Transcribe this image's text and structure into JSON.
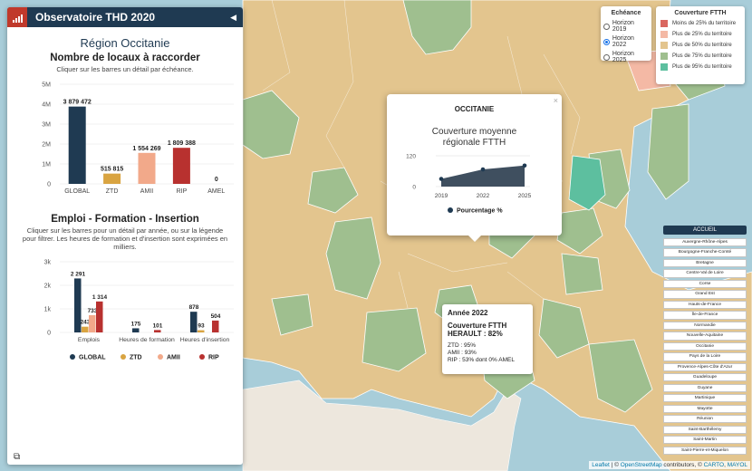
{
  "panel": {
    "title": "Observatoire THD 2020",
    "region_title": "Région Occitanie",
    "chart1_title": "Nombre de locaux à raccorder",
    "chart1_hint": "Cliquer sur les barres un détail par échéance.",
    "chart2_title": "Emploi - Formation - Insertion",
    "chart2_hint": "Cliquer sur les barres pour un détail par année, ou sur la légende pour filtrer. Les heures de formation et d'insertion sont exprimées en milliers."
  },
  "chart_data": [
    {
      "type": "bar",
      "categories": [
        "GLOBAL",
        "ZTD",
        "AMII",
        "RIP",
        "AMEL"
      ],
      "values": [
        3879472,
        515815,
        1554269,
        1809388,
        0
      ],
      "value_labels": [
        "3 879 472",
        "515 815",
        "1 554 269",
        "1 809 388",
        "0"
      ],
      "colors": [
        "#1f3a52",
        "#d9a441",
        "#f2a98a",
        "#b8312f",
        "#888888"
      ],
      "ylim": [
        0,
        5000000
      ],
      "yticks": [
        0,
        1000000,
        2000000,
        3000000,
        4000000,
        5000000
      ],
      "ytick_labels": [
        "0",
        "1M",
        "2M",
        "3M",
        "4M",
        "5M"
      ]
    },
    {
      "type": "bar",
      "categories": [
        "Emplois",
        "Heures de formation",
        "Heures d'insertion"
      ],
      "series": [
        {
          "name": "GLOBAL",
          "color": "#1f3a52",
          "values": [
            2291,
            175,
            878
          ]
        },
        {
          "name": "ZTD",
          "color": "#d9a441",
          "values": [
            243,
            0,
            93
          ]
        },
        {
          "name": "AMII",
          "color": "#f2a98a",
          "values": [
            733,
            0,
            0
          ]
        },
        {
          "name": "RIP",
          "color": "#b8312f",
          "values": [
            1314,
            101,
            504
          ]
        }
      ],
      "ylim": [
        0,
        3000
      ],
      "yticks": [
        0,
        1000,
        2000,
        3000
      ],
      "ytick_labels": [
        "0",
        "1k",
        "2k",
        "3k"
      ]
    },
    {
      "type": "area",
      "x": [
        2019,
        2022,
        2025
      ],
      "series": [
        {
          "name": "Pourcentage %",
          "color": "#3f4f5f",
          "values": [
            30,
            67,
            82
          ]
        }
      ],
      "ylim": [
        0,
        120
      ],
      "yticks": [
        0,
        120
      ]
    }
  ],
  "popup": {
    "region": "OCCITANIE",
    "chart_title_line1": "Couverture moyenne",
    "chart_title_line2": "régionale FTTH",
    "close": "×"
  },
  "horizon": {
    "title": "Echéance",
    "options": [
      {
        "label": "Horizon 2019",
        "selected": false
      },
      {
        "label": "Horizon 2022",
        "selected": true
      },
      {
        "label": "Horizon 2025",
        "selected": false
      }
    ]
  },
  "ftth_legend": {
    "title": "Couverture FTTH",
    "items": [
      {
        "label": "Moins de 25% du territoire",
        "color": "#d9665f"
      },
      {
        "label": "Plus de 25% du territoire",
        "color": "#f4b9a5"
      },
      {
        "label": "Plus de 50% du territoire",
        "color": "#e3c58e"
      },
      {
        "label": "Plus de 75% du territoire",
        "color": "#9fbf8f"
      },
      {
        "label": "Plus de 95% du territoire",
        "color": "#5dbf9f"
      }
    ]
  },
  "tooltip": {
    "year": "Année 2022",
    "line1": "Couverture FTTH",
    "line2": "HERAULT : 82%",
    "ztd": "ZTD : 95%",
    "amii": "AMII : 93%",
    "rip": "RIP : 53% dont 0% AMEL"
  },
  "region_list": {
    "accueil": "ACCUEIL",
    "regions": [
      "Auvergne-Rhône-Alpes",
      "Bourgogne-Franche-Comté",
      "Bretagne",
      "Centre-Val de Loire",
      "Corse",
      "Grand Est",
      "Hauts-de-France",
      "Île-de-France",
      "Normandie",
      "Nouvelle-Aquitaine",
      "Occitanie",
      "Pays de la Loire",
      "Provence-Alpes-Côte d'Azur",
      "Guadeloupe",
      "Guyane",
      "Martinique",
      "Mayotte",
      "Réunion",
      "Saint-Barthélemy",
      "Saint-Martin",
      "Saint-Pierre-et-Miquelon"
    ]
  },
  "attribution": {
    "leaflet": "Leaflet",
    "sep": " | © ",
    "osm": "OpenStreetMap",
    "mid": " contributors, © ",
    "carto": "CARTO",
    "comma": ", ",
    "mayol": "MAYOL"
  },
  "colors": {
    "sea": "#a8cdd9",
    "land_tan": "#e3c58e",
    "land_green": "#9fbf8f",
    "land_pink": "#f4b9a5",
    "land_teal": "#5dbf9f",
    "header": "#1f3a52"
  }
}
